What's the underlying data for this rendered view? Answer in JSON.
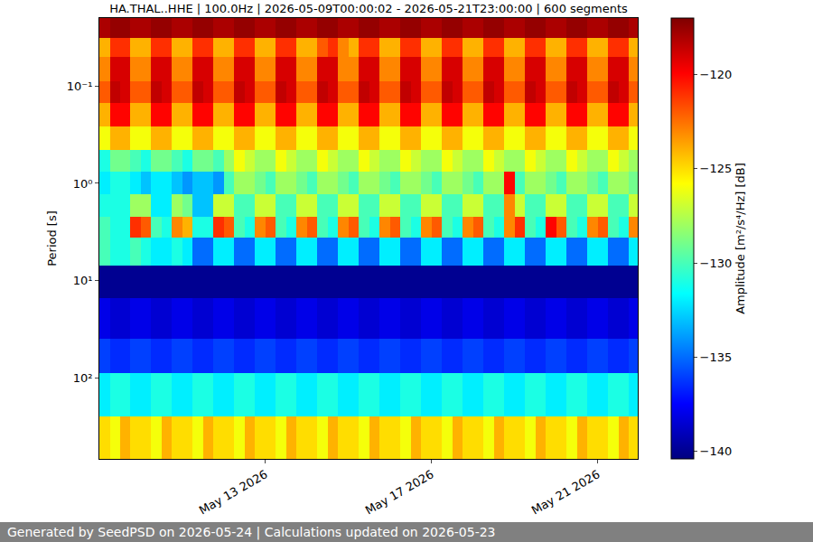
{
  "chart_data": {
    "type": "heatmap",
    "title": "HA.THAL..HHE | 100.0Hz | 2026-05-09T00:00:02 - 2026-05-21T23:00:00 | 600 segments",
    "ylabel": "Period [s]",
    "x": [
      "2026-05-09T03:00",
      "2026-05-09T09:00",
      "2026-05-09T15:00",
      "2026-05-09T21:00",
      "2026-05-10T03:00",
      "2026-05-10T09:00",
      "2026-05-10T15:00",
      "2026-05-10T21:00",
      "2026-05-11T03:00",
      "2026-05-11T09:00",
      "2026-05-11T15:00",
      "2026-05-11T21:00",
      "2026-05-12T03:00",
      "2026-05-12T09:00",
      "2026-05-12T15:00",
      "2026-05-12T21:00",
      "2026-05-13T03:00",
      "2026-05-13T09:00",
      "2026-05-13T15:00",
      "2026-05-13T21:00",
      "2026-05-14T03:00",
      "2026-05-14T09:00",
      "2026-05-14T15:00",
      "2026-05-14T21:00",
      "2026-05-15T03:00",
      "2026-05-15T09:00",
      "2026-05-15T15:00",
      "2026-05-15T21:00",
      "2026-05-16T03:00",
      "2026-05-16T09:00",
      "2026-05-16T15:00",
      "2026-05-16T21:00",
      "2026-05-17T03:00",
      "2026-05-17T09:00",
      "2026-05-17T15:00",
      "2026-05-17T21:00",
      "2026-05-18T03:00",
      "2026-05-18T09:00",
      "2026-05-18T15:00",
      "2026-05-18T21:00",
      "2026-05-19T03:00",
      "2026-05-19T09:00",
      "2026-05-19T15:00",
      "2026-05-19T21:00",
      "2026-05-20T03:00",
      "2026-05-20T09:00",
      "2026-05-20T15:00",
      "2026-05-20T21:00",
      "2026-05-21T03:00",
      "2026-05-21T09:00",
      "2026-05-21T15:00",
      "2026-05-21T21:00"
    ],
    "y_edges": [
      0.02,
      0.032,
      0.05,
      0.09,
      0.15,
      0.26,
      0.45,
      0.75,
      1.3,
      2.2,
      3.6,
      7,
      15,
      40,
      90,
      250,
      680
    ],
    "z": [
      [
        -118,
        -117.5,
        -117.5,
        -118,
        -118,
        -117.5,
        -117.5,
        -118,
        -118,
        -117.5,
        -117.5,
        -118,
        -118,
        -117.5,
        -117.5,
        -118,
        -118,
        -117.5,
        -117.5,
        -118,
        -118,
        -117.5,
        -117.5,
        -118,
        -118,
        -117.5,
        -117.5,
        -118,
        -118,
        -117.5,
        -117.5,
        -118,
        -118,
        -117.5,
        -117.5,
        -118,
        -118,
        -117.5,
        -117.5,
        -118,
        -118,
        -117.5,
        -117.5,
        -118,
        -118,
        -117.5,
        -117.5,
        -118,
        -118,
        -117.5,
        -117.5,
        -118
      ],
      [
        -124,
        -121,
        -121,
        -124,
        -124,
        -121,
        -121,
        -124,
        -124,
        -121,
        -121,
        -124,
        -124,
        -121,
        -121,
        -124,
        -124,
        -121,
        -121,
        -124,
        -124,
        -122,
        -121,
        -123,
        -124,
        -121,
        -121,
        -124,
        -124,
        -121,
        -121,
        -124,
        -124,
        -121,
        -121,
        -124,
        -124,
        -121,
        -121,
        -124,
        -124,
        -121,
        -121,
        -124,
        -124,
        -121,
        -121,
        -124,
        -124,
        -121,
        -121,
        -124
      ],
      [
        -123,
        -119,
        -119,
        -123,
        -123,
        -119,
        -119,
        -123,
        -123,
        -119,
        -119,
        -123,
        -123,
        -119,
        -119,
        -123,
        -123,
        -119,
        -119,
        -123,
        -123,
        -119,
        -119,
        -123,
        -123,
        -119,
        -119,
        -123,
        -123,
        -119,
        -119,
        -123,
        -123,
        -119,
        -119,
        -123,
        -123,
        -119,
        -119,
        -123,
        -123,
        -119,
        -119,
        -123,
        -123,
        -119,
        -119,
        -123,
        -123,
        -119,
        -119,
        -123
      ],
      [
        -122,
        -118.5,
        -119,
        -122,
        -122,
        -118.5,
        -119,
        -122,
        -122,
        -118.5,
        -119,
        -122,
        -122,
        -118.5,
        -119,
        -122,
        -122,
        -118.5,
        -119,
        -122,
        -122,
        -118.5,
        -119,
        -122,
        -122,
        -118.5,
        -119,
        -122,
        -122,
        -118.5,
        -119,
        -122,
        -122,
        -118.5,
        -119,
        -122,
        -122,
        -118.5,
        -119,
        -122,
        -122,
        -118.5,
        -119,
        -122,
        -122,
        -118.5,
        -119,
        -122,
        -122,
        -118.5,
        -119,
        -122
      ],
      [
        -124,
        -120,
        -120,
        -124,
        -124,
        -120,
        -120,
        -124,
        -124,
        -120,
        -120,
        -124,
        -124,
        -120,
        -120,
        -124,
        -124,
        -120,
        -120,
        -124,
        -124,
        -120,
        -120,
        -124,
        -124,
        -120,
        -120,
        -124,
        -124,
        -120,
        -120,
        -124,
        -124,
        -120,
        -120,
        -124,
        -124,
        -120,
        -120,
        -124,
        -124,
        -120,
        -120,
        -124,
        -124,
        -120,
        -120,
        -124,
        -124,
        -120,
        -120,
        -124
      ],
      [
        -126,
        -124,
        -124,
        -126,
        -126,
        -124,
        -124,
        -126,
        -126,
        -124,
        -124,
        -126,
        -126,
        -124,
        -124,
        -126,
        -126,
        -124,
        -124,
        -126,
        -126,
        -124,
        -124,
        -126,
        -126,
        -124,
        -124,
        -126,
        -126,
        -124,
        -124,
        -126,
        -126,
        -124,
        -124,
        -126,
        -126,
        -124,
        -124,
        -126,
        -126,
        -124,
        -124,
        -126,
        -126,
        -124,
        -124,
        -126,
        -126,
        -124,
        -124,
        -126
      ],
      [
        -131,
        -129,
        -129,
        -130,
        -131,
        -129,
        -129,
        -130,
        -131,
        -129,
        -129,
        -130,
        -128,
        -126,
        -127,
        -128,
        -128,
        -126,
        -127,
        -128,
        -128,
        -126,
        -127,
        -128,
        -128,
        -126,
        -127,
        -128,
        -128,
        -126,
        -127,
        -128,
        -128,
        -126,
        -127,
        -128,
        -128,
        -126,
        -127,
        -128,
        -128,
        -126,
        -127,
        -128,
        -128,
        -126,
        -127,
        -128,
        -128,
        -126,
        -127,
        -128
      ],
      [
        -132,
        -131,
        -131,
        -132,
        -133,
        -132,
        -132,
        -133,
        -134,
        -133,
        -133,
        -134,
        -130,
        -128,
        -128,
        -129,
        -130,
        -128,
        -128,
        -129,
        -130,
        -128,
        -128,
        -129,
        -130,
        -128,
        -128,
        -129,
        -130,
        -128,
        -128,
        -129,
        -130,
        -128,
        -128,
        -129,
        -130,
        -128,
        -128,
        -120,
        -130,
        -128,
        -128,
        -129,
        -130,
        -128,
        -128,
        -129,
        -130,
        -128,
        -128,
        -129
      ],
      [
        -131,
        -131,
        -131,
        -128,
        -128,
        -132,
        -132,
        -128,
        -129,
        -133,
        -133,
        -127,
        -127,
        -130,
        -130,
        -127,
        -127,
        -130,
        -130,
        -127,
        -127,
        -130,
        -130,
        -127,
        -127,
        -130,
        -130,
        -127,
        -127,
        -130,
        -130,
        -127,
        -127,
        -130,
        -130,
        -127,
        -127,
        -130,
        -130,
        -123,
        -127,
        -130,
        -130,
        -127,
        -127,
        -130,
        -130,
        -127,
        -127,
        -130,
        -130,
        -127
      ],
      [
        -130,
        -131,
        -131,
        -121,
        -122,
        -130,
        -131,
        -123,
        -124,
        -131,
        -131,
        -121,
        -122,
        -130,
        -131,
        -123,
        -122,
        -130,
        -131,
        -123,
        -122,
        -130,
        -131,
        -123,
        -122,
        -130,
        -131,
        -123,
        -122,
        -130,
        -131,
        -123,
        -122,
        -130,
        -131,
        -123,
        -122,
        -130,
        -131,
        -123,
        -121,
        -130,
        -131,
        -120,
        -122,
        -130,
        -131,
        -123,
        -122,
        -130,
        -131,
        -123
      ],
      [
        -130,
        -131,
        -131,
        -130,
        -131,
        -132,
        -132,
        -131,
        -132,
        -135,
        -135,
        -132,
        -132,
        -135,
        -135,
        -132,
        -132,
        -135,
        -135,
        -132,
        -132,
        -135,
        -135,
        -132,
        -132,
        -135,
        -135,
        -132,
        -132,
        -135,
        -135,
        -132,
        -132,
        -135,
        -135,
        -132,
        -132,
        -135,
        -135,
        -132,
        -132,
        -135,
        -135,
        -132,
        -132,
        -135,
        -135,
        -132,
        -132,
        -135,
        -135,
        -132
      ],
      [
        -140,
        -140,
        -140,
        -140,
        -140,
        -140,
        -140,
        -140,
        -140,
        -140,
        -140,
        -140,
        -140,
        -140,
        -140,
        -140,
        -140,
        -140,
        -140,
        -140,
        -140,
        -140,
        -140,
        -140,
        -140,
        -140,
        -140,
        -140,
        -140,
        -140,
        -140,
        -140,
        -140,
        -140,
        -140,
        -140,
        -140,
        -140,
        -140,
        -140,
        -140,
        -140,
        -140,
        -140,
        -140,
        -140,
        -140,
        -140,
        -140,
        -140,
        -140,
        -140
      ],
      [
        -138,
        -138.5,
        -138.5,
        -138,
        -138,
        -138.5,
        -138.5,
        -138,
        -138,
        -138.5,
        -138.5,
        -138,
        -138,
        -138.5,
        -138.5,
        -138,
        -138,
        -138.5,
        -138.5,
        -138,
        -138,
        -138.5,
        -138.5,
        -138,
        -138,
        -138.5,
        -138.5,
        -138,
        -138,
        -138.5,
        -138.5,
        -138,
        -138,
        -138.5,
        -138.5,
        -138,
        -138,
        -138.5,
        -138.5,
        -138,
        -138,
        -138.5,
        -138.5,
        -138,
        -138,
        -138.5,
        -138.5,
        -138,
        -138,
        -138.5,
        -138.5,
        -138
      ],
      [
        -136,
        -136.5,
        -136.5,
        -136,
        -136,
        -136.5,
        -136.5,
        -136,
        -136,
        -136.5,
        -136.5,
        -136,
        -136,
        -136.5,
        -136.5,
        -136,
        -136,
        -136.5,
        -136.5,
        -136,
        -136,
        -136.5,
        -136.5,
        -136,
        -136,
        -136.5,
        -136.5,
        -136,
        -136,
        -136.5,
        -136.5,
        -136,
        -136,
        -136.5,
        -136.5,
        -136,
        -136,
        -136.5,
        -136.5,
        -136,
        -136,
        -136.5,
        -136.5,
        -136,
        -136,
        -136.5,
        -136.5,
        -136,
        -136,
        -136.5,
        -136.5,
        -136
      ],
      [
        -132,
        -131,
        -131,
        -132,
        -132,
        -131,
        -131,
        -132,
        -132,
        -131,
        -131,
        -132,
        -132,
        -131,
        -131,
        -132,
        -132,
        -131,
        -131,
        -132,
        -132,
        -131,
        -131,
        -132,
        -132,
        -131,
        -131,
        -132,
        -132,
        -131,
        -131,
        -132,
        -132,
        -131,
        -131,
        -132,
        -132,
        -131,
        -131,
        -132,
        -132,
        -131,
        -131,
        -132,
        -132,
        -131,
        -131,
        -132,
        -132,
        -131,
        -131,
        -132
      ],
      [
        -125,
        -126,
        -124,
        -125,
        -125,
        -126,
        -124,
        -125,
        -125,
        -126,
        -124,
        -125,
        -125,
        -126,
        -124,
        -125,
        -125,
        -126,
        -124,
        -125,
        -125,
        -126,
        -124,
        -125,
        -125,
        -126,
        -124,
        -125,
        -125,
        -126,
        -124,
        -125,
        -125,
        -126,
        -124,
        -125,
        -125,
        -126,
        -124,
        -125,
        -125,
        -126,
        -124,
        -125,
        -125,
        -126,
        -124,
        -125,
        -125,
        -126,
        -124,
        -125
      ]
    ],
    "xlim": [
      "2026-05-09T00:00:02",
      "2026-05-21T23:00:00"
    ],
    "xticks": [
      {
        "value": "2026-05-13",
        "label": "May 13 2026"
      },
      {
        "value": "2026-05-17",
        "label": "May 17 2026"
      },
      {
        "value": "2026-05-21",
        "label": "May 21 2026"
      }
    ],
    "ylim": [
      0.02,
      680
    ],
    "yticks": [
      {
        "value": 0.1,
        "label": "10⁻¹"
      },
      {
        "value": 1,
        "label": "10⁰"
      },
      {
        "value": 10,
        "label": "10¹"
      },
      {
        "value": 100,
        "label": "10²"
      }
    ],
    "log": "y",
    "grid": true,
    "color": "jet",
    "colorbar": {
      "title": "Amplitude [m²/s⁴/Hz] [dB]",
      "range": [
        -140.4,
        -117
      ],
      "ticks": [
        -140,
        -135,
        -130,
        -125,
        -120
      ]
    }
  },
  "footer": "Generated by SeedPSD on 2026-05-24 | Calculations updated on 2026-05-23"
}
